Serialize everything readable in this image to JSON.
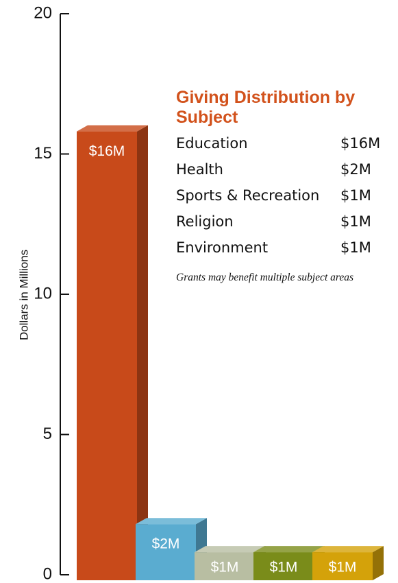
{
  "chart_data": {
    "type": "bar",
    "title": "Giving Distribution by Subject",
    "y_label": "Dollars in Millions",
    "note": "Grants may benefit multiple subject areas",
    "categories": [
      "Education",
      "Health",
      "Sports & Recreation",
      "Religion",
      "Environment"
    ],
    "values": [
      16,
      2,
      1,
      1,
      1
    ],
    "value_labels": [
      "$16M",
      "$2M",
      "$1M",
      "$1M",
      "$1M"
    ],
    "colors": [
      "#c84a1a",
      "#5aacd0",
      "#b8bea2",
      "#7a8c1a",
      "#d4a20a"
    ],
    "ylim": [
      0,
      20
    ],
    "yticks": [
      0,
      5,
      10,
      15,
      20
    ]
  }
}
